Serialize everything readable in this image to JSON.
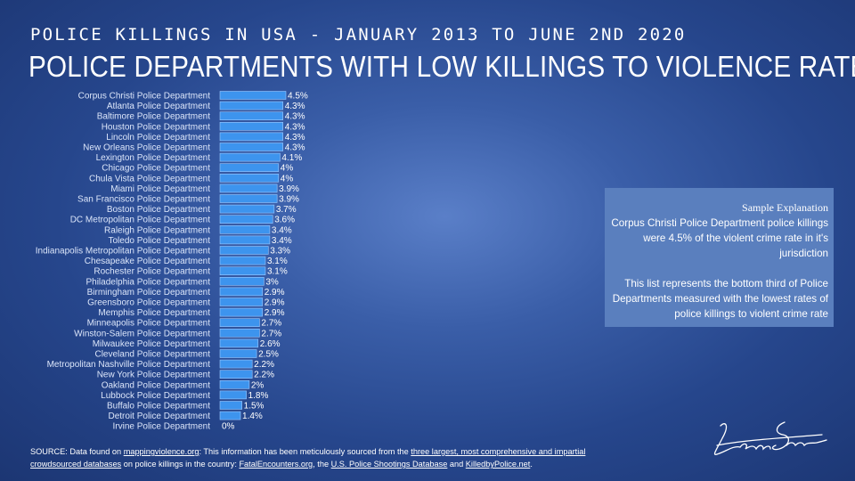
{
  "header": {
    "supertitle": "POLICE KILLINGS IN USA - JANUARY 2013 TO JUNE 2ND 2020",
    "title": "POLICE DEPARTMENTS WITH LOW KILLINGS TO VIOLENCE RATE"
  },
  "chart_data": {
    "type": "bar",
    "orientation": "horizontal",
    "title": "POLICE DEPARTMENTS WITH LOW KILLINGS TO VIOLENCE RATE",
    "xlabel": "",
    "ylabel": "",
    "grid": false,
    "legend": "none",
    "bar_color": "#3d94ee",
    "xlim": [
      0,
      4.5
    ],
    "categories": [
      "Corpus Christi Police Department",
      "Atlanta Police Department",
      "Baltimore Police Department",
      "Houston Police Department",
      "Lincoln Police Department",
      "New Orleans Police Department",
      "Lexington Police Department",
      "Chicago Police Department",
      "Chula Vista Police Department",
      "Miami Police Department",
      "San Francisco Police Department",
      "Boston Police Department",
      "DC Metropolitan Police Department",
      "Raleigh Police Department",
      "Toledo Police Department",
      "Indianapolis Metropolitan Police Department",
      "Chesapeake Police Department",
      "Rochester Police Department",
      "Philadelphia Police Department",
      "Birmingham Police Department",
      "Greensboro Police Department",
      "Memphis Police Department",
      "Minneapolis Police Department",
      "Winston-Salem Police Department",
      "Milwaukee Police Department",
      "Cleveland Police Department",
      "Metropolitan Nashville Police Department",
      "New York Police Department",
      "Oakland Police Department",
      "Lubbock Police Department",
      "Buffalo Police Department",
      "Detroit Police Department",
      "Irvine Police Department"
    ],
    "values": [
      4.5,
      4.3,
      4.3,
      4.3,
      4.3,
      4.3,
      4.1,
      4,
      4,
      3.9,
      3.9,
      3.7,
      3.6,
      3.4,
      3.4,
      3.3,
      3.1,
      3.1,
      3,
      2.9,
      2.9,
      2.9,
      2.7,
      2.7,
      2.6,
      2.5,
      2.2,
      2.2,
      2,
      1.8,
      1.5,
      1.4,
      0
    ],
    "value_labels": [
      "4.5%",
      "4.3%",
      "4.3%",
      "4.3%",
      "4.3%",
      "4.3%",
      "4.1%",
      "4%",
      "4%",
      "3.9%",
      "3.9%",
      "3.7%",
      "3.6%",
      "3.4%",
      "3.4%",
      "3.3%",
      "3.1%",
      "3.1%",
      "3%",
      "2.9%",
      "2.9%",
      "2.9%",
      "2.7%",
      "2.7%",
      "2.6%",
      "2.5%",
      "2.2%",
      "2.2%",
      "2%",
      "1.8%",
      "1.5%",
      "1.4%",
      "0%"
    ]
  },
  "explanation": {
    "title": "Sample Explanation",
    "line1": "Corpus Christi Police Department police killings were 4.5% of the violent crime rate in it's jurisdiction",
    "line2": "This list represents the bottom third of Police Departments measured with the lowest rates of police killings to violent crime rate"
  },
  "source": {
    "prefix": "SOURCE: Data found on ",
    "link1": "mappingviolence.org",
    "mid1": ": This information has been meticulously sourced from the ",
    "link2": "three largest, most comprehensive and impartial crowdsourced databases",
    "mid2": " on police killings in the country: ",
    "link3": "FatalEncounters.org",
    "mid3": ", the ",
    "link4": "U.S. Police Shootings Database",
    "mid4": " and ",
    "link5": "KilledbyPolice.net",
    "suffix": "."
  },
  "signature": {
    "icon": "signature-icon"
  }
}
